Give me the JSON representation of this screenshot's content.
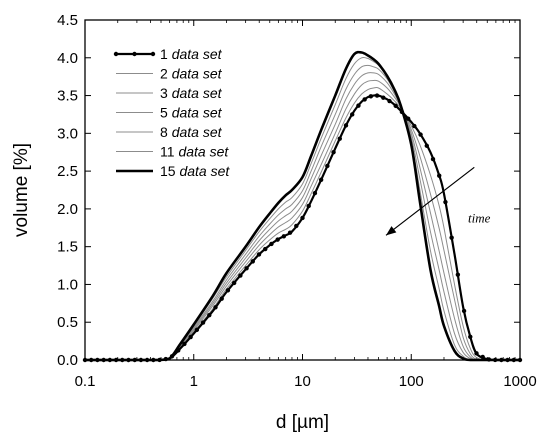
{
  "chart_data": {
    "type": "line",
    "x_scale": "log",
    "xlim": [
      0.1,
      1000
    ],
    "ylim": [
      0,
      4.5
    ],
    "xticks": [
      "0.1",
      "1",
      "10",
      "100",
      "1000"
    ],
    "yticks": [
      "0.0",
      "0.5",
      "1.0",
      "1.5",
      "2.0",
      "2.5",
      "3.0",
      "3.5",
      "4.0",
      "4.5"
    ],
    "xlabel": "d [µm]",
    "ylabel": "volume [%]",
    "grid": false,
    "legend_position": "top-left",
    "annotation": "time",
    "x": [
      0.1,
      0.13,
      0.17,
      0.22,
      0.29,
      0.37,
      0.48,
      0.6,
      0.75,
      1,
      1.5,
      2,
      3,
      4,
      5,
      6,
      7,
      8,
      10,
      12,
      15,
      20,
      25,
      30,
      35,
      40,
      45,
      50,
      60,
      70,
      80,
      100,
      120,
      150,
      180,
      200,
      250,
      300,
      350,
      400,
      500,
      600,
      800,
      1000
    ],
    "series": [
      {
        "name": "1 data set",
        "style": "bold-markers",
        "values": [
          0,
          0,
          0,
          0,
          0,
          0,
          0,
          0.02,
          0.15,
          0.35,
          0.65,
          0.9,
          1.2,
          1.4,
          1.52,
          1.6,
          1.65,
          1.7,
          1.88,
          2.1,
          2.4,
          2.8,
          3.1,
          3.3,
          3.42,
          3.48,
          3.5,
          3.5,
          3.45,
          3.38,
          3.3,
          3.15,
          3.0,
          2.75,
          2.45,
          2.2,
          1.4,
          0.7,
          0.3,
          0.08,
          0.01,
          0,
          0,
          0
        ]
      },
      {
        "name": "2 data set",
        "style": "thin",
        "values": [
          0,
          0,
          0,
          0,
          0,
          0,
          0,
          0.02,
          0.16,
          0.37,
          0.68,
          0.94,
          1.25,
          1.46,
          1.59,
          1.68,
          1.73,
          1.79,
          1.97,
          2.2,
          2.5,
          2.9,
          3.2,
          3.4,
          3.52,
          3.58,
          3.6,
          3.6,
          3.52,
          3.43,
          3.33,
          3.1,
          2.85,
          2.45,
          2.05,
          1.75,
          1.0,
          0.45,
          0.15,
          0.03,
          0,
          0,
          0,
          0
        ]
      },
      {
        "name": "3 data set",
        "style": "thin",
        "values": [
          0,
          0,
          0,
          0,
          0,
          0,
          0,
          0.02,
          0.17,
          0.39,
          0.72,
          0.98,
          1.3,
          1.52,
          1.66,
          1.76,
          1.82,
          1.88,
          2.06,
          2.3,
          2.6,
          3.0,
          3.32,
          3.52,
          3.64,
          3.69,
          3.7,
          3.69,
          3.6,
          3.48,
          3.35,
          3.05,
          2.7,
          2.2,
          1.75,
          1.45,
          0.8,
          0.3,
          0.08,
          0.01,
          0,
          0,
          0,
          0
        ]
      },
      {
        "name": "5 data set",
        "style": "thin",
        "values": [
          0,
          0,
          0,
          0,
          0,
          0,
          0,
          0.02,
          0.18,
          0.41,
          0.75,
          1.02,
          1.35,
          1.58,
          1.73,
          1.84,
          1.91,
          1.97,
          2.15,
          2.4,
          2.72,
          3.12,
          3.45,
          3.65,
          3.76,
          3.8,
          3.8,
          3.78,
          3.67,
          3.52,
          3.36,
          3.0,
          2.55,
          1.95,
          1.45,
          1.15,
          0.55,
          0.18,
          0.04,
          0,
          0,
          0,
          0,
          0
        ]
      },
      {
        "name": "8 data set",
        "style": "thin",
        "values": [
          0,
          0,
          0,
          0,
          0,
          0,
          0,
          0.02,
          0.19,
          0.43,
          0.78,
          1.06,
          1.4,
          1.64,
          1.8,
          1.92,
          2.0,
          2.06,
          2.24,
          2.5,
          2.84,
          3.25,
          3.58,
          3.78,
          3.88,
          3.9,
          3.88,
          3.85,
          3.72,
          3.55,
          3.37,
          2.95,
          2.4,
          1.7,
          1.2,
          0.9,
          0.35,
          0.1,
          0.02,
          0,
          0,
          0,
          0,
          0
        ]
      },
      {
        "name": "11 data set",
        "style": "thin",
        "values": [
          0,
          0,
          0,
          0,
          0,
          0,
          0,
          0.02,
          0.2,
          0.45,
          0.82,
          1.1,
          1.45,
          1.7,
          1.87,
          2.0,
          2.09,
          2.15,
          2.33,
          2.6,
          2.95,
          3.38,
          3.72,
          3.92,
          4.0,
          3.99,
          3.95,
          3.9,
          3.75,
          3.57,
          3.37,
          2.9,
          2.25,
          1.45,
          0.95,
          0.65,
          0.2,
          0.05,
          0,
          0,
          0,
          0,
          0,
          0
        ]
      },
      {
        "name": "15 data set",
        "style": "bold",
        "values": [
          0,
          0,
          0,
          0,
          0,
          0,
          0,
          0.02,
          0.21,
          0.47,
          0.85,
          1.15,
          1.5,
          1.76,
          1.94,
          2.08,
          2.18,
          2.25,
          2.42,
          2.7,
          3.06,
          3.5,
          3.85,
          4.05,
          4.07,
          4.03,
          3.98,
          3.92,
          3.76,
          3.58,
          3.37,
          2.85,
          2.1,
          1.2,
          0.72,
          0.45,
          0.12,
          0.02,
          0,
          0,
          0,
          0,
          0,
          0
        ]
      }
    ]
  }
}
